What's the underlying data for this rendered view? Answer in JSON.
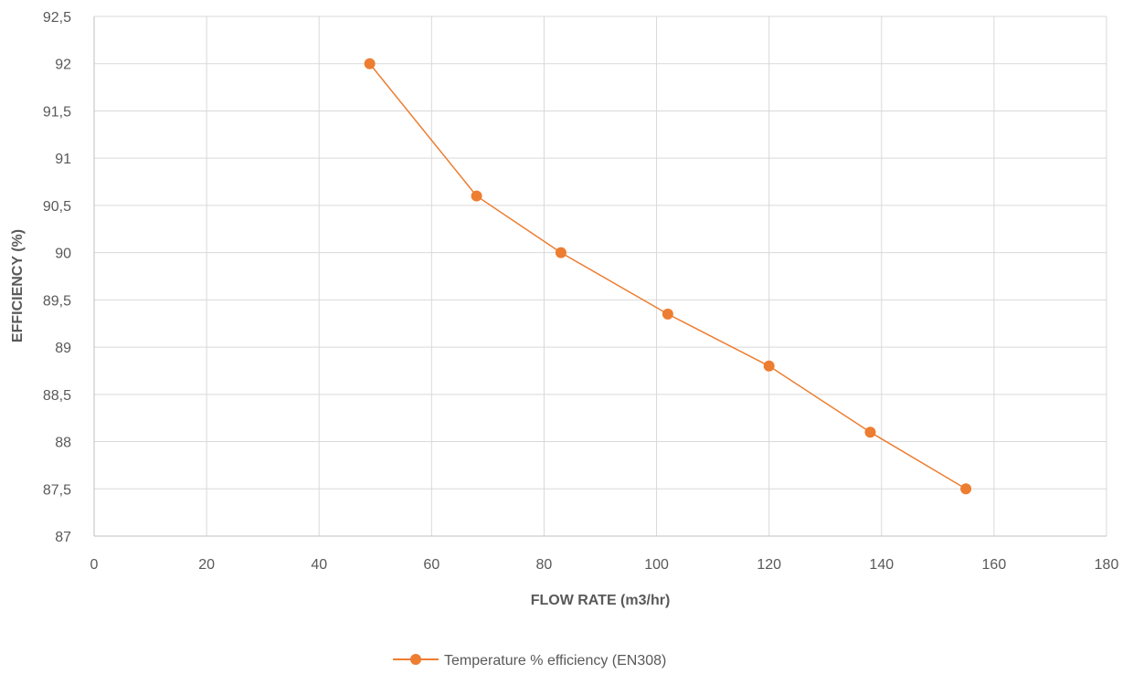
{
  "chart_data": {
    "type": "line",
    "xlabel": "FLOW RATE (m3/hr)",
    "ylabel": "EFFICIENCY (%)",
    "xlim": [
      0,
      180
    ],
    "ylim": [
      87,
      92.5
    ],
    "x_ticks": [
      0,
      20,
      40,
      60,
      80,
      100,
      120,
      140,
      160,
      180
    ],
    "x_tick_labels": [
      "0",
      "20",
      "40",
      "60",
      "80",
      "100",
      "120",
      "140",
      "160",
      "180"
    ],
    "y_ticks": [
      87,
      87.5,
      88,
      88.5,
      89,
      89.5,
      90,
      90.5,
      91,
      91.5,
      92,
      92.5
    ],
    "y_tick_labels": [
      "87",
      "87,5",
      "88",
      "88,5",
      "89",
      "89,5",
      "90",
      "90,5",
      "91",
      "91,5",
      "92",
      "92,5"
    ],
    "grid": "both",
    "legend_position": "bottom",
    "series": [
      {
        "name": "Temperature % efficiency (EN308)",
        "color": "#ed7d31",
        "marker": "circle",
        "x": [
          49,
          68,
          83,
          102,
          120,
          138,
          155
        ],
        "y": [
          92.0,
          90.6,
          90.0,
          89.35,
          88.8,
          88.1,
          87.5
        ]
      }
    ]
  }
}
